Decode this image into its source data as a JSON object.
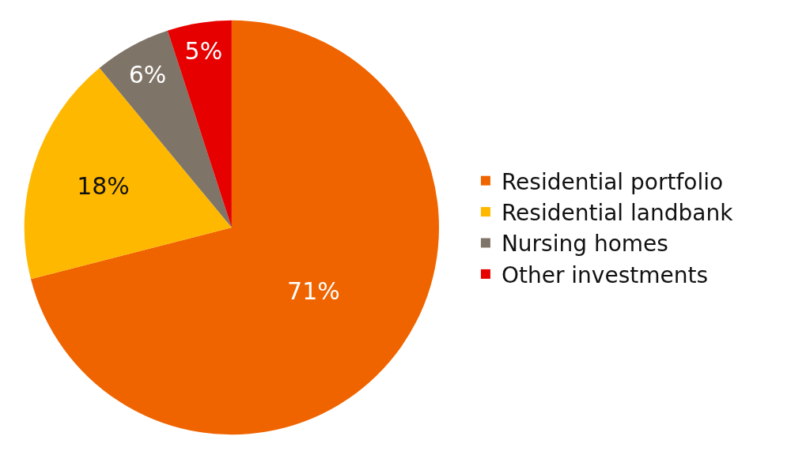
{
  "chart_data": {
    "type": "pie",
    "categories": [
      "Residential portfolio",
      "Residential landbank",
      "Nursing homes",
      "Other investments"
    ],
    "values": [
      71,
      18,
      6,
      5
    ],
    "value_labels": [
      "71%",
      "18%",
      "6%",
      "5%"
    ],
    "colors": [
      "#f06400",
      "#ffb800",
      "#7e7467",
      "#e60000"
    ],
    "legend": "right"
  }
}
